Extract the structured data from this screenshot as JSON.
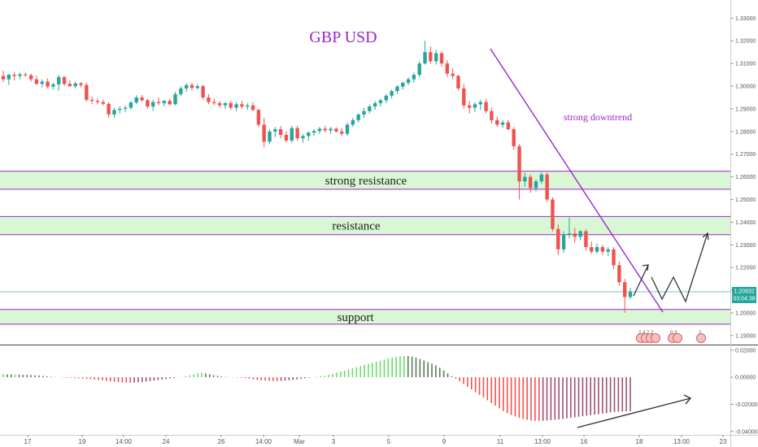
{
  "chart_data": {
    "type": "candlestick",
    "title": "GBP USD",
    "annotation": "strong downtrend",
    "price_axis": {
      "ticks": [
        "1.33000",
        "1.32000",
        "1.31000",
        "1.30000",
        "1.29000",
        "1.28000",
        "1.27000",
        "1.26000",
        "1.25000",
        "1.24000",
        "1.23000",
        "1.22000",
        "1.21000",
        "1.20000",
        "1.19000"
      ],
      "range": [
        1.186,
        1.338
      ]
    },
    "current_price": "1.20932",
    "countdown": "03:04:38",
    "zones": [
      {
        "label": "strong resistance",
        "from": 1.2545,
        "to": 1.2625
      },
      {
        "label": "resistance",
        "from": 1.2345,
        "to": 1.2425
      },
      {
        "label": "support",
        "from": 1.195,
        "to": 1.2015
      }
    ],
    "x_labels": [
      "17",
      "19",
      "14:00",
      "24",
      "26",
      "14:00",
      "Mar",
      "3",
      "5",
      "9",
      "11",
      "13:00",
      "16",
      "18",
      "13:00",
      "23"
    ],
    "candles": [
      {
        "o": 1.3045,
        "h": 1.3068,
        "l": 1.3018,
        "c": 1.303
      },
      {
        "o": 1.303,
        "h": 1.3055,
        "l": 1.3005,
        "c": 1.305
      },
      {
        "o": 1.305,
        "h": 1.3062,
        "l": 1.3025,
        "c": 1.3045
      },
      {
        "o": 1.3045,
        "h": 1.306,
        "l": 1.303,
        "c": 1.3052
      },
      {
        "o": 1.3052,
        "h": 1.306,
        "l": 1.304,
        "c": 1.3048
      },
      {
        "o": 1.3048,
        "h": 1.3055,
        "l": 1.302,
        "c": 1.303
      },
      {
        "o": 1.303,
        "h": 1.3045,
        "l": 1.3005,
        "c": 1.301
      },
      {
        "o": 1.301,
        "h": 1.303,
        "l": 1.2995,
        "c": 1.302
      },
      {
        "o": 1.302,
        "h": 1.3035,
        "l": 1.299,
        "c": 1.2998
      },
      {
        "o": 1.2998,
        "h": 1.3015,
        "l": 1.2985,
        "c": 1.3008
      },
      {
        "o": 1.3008,
        "h": 1.305,
        "l": 1.298,
        "c": 1.304
      },
      {
        "o": 1.304,
        "h": 1.3045,
        "l": 1.3,
        "c": 1.301
      },
      {
        "o": 1.301,
        "h": 1.3025,
        "l": 1.2995,
        "c": 1.3
      },
      {
        "o": 1.3,
        "h": 1.302,
        "l": 1.299,
        "c": 1.3012
      },
      {
        "o": 1.3012,
        "h": 1.3018,
        "l": 1.2995,
        "c": 1.3005
      },
      {
        "o": 1.3005,
        "h": 1.3015,
        "l": 1.293,
        "c": 1.294
      },
      {
        "o": 1.294,
        "h": 1.2955,
        "l": 1.292,
        "c": 1.2935
      },
      {
        "o": 1.2935,
        "h": 1.2945,
        "l": 1.292,
        "c": 1.293
      },
      {
        "o": 1.293,
        "h": 1.294,
        "l": 1.2915,
        "c": 1.2922
      },
      {
        "o": 1.2922,
        "h": 1.293,
        "l": 1.286,
        "c": 1.2875
      },
      {
        "o": 1.2875,
        "h": 1.2905,
        "l": 1.286,
        "c": 1.2895
      },
      {
        "o": 1.2895,
        "h": 1.291,
        "l": 1.288,
        "c": 1.29
      },
      {
        "o": 1.29,
        "h": 1.2915,
        "l": 1.2885,
        "c": 1.2905
      },
      {
        "o": 1.2905,
        "h": 1.2935,
        "l": 1.2895,
        "c": 1.2928
      },
      {
        "o": 1.2928,
        "h": 1.296,
        "l": 1.292,
        "c": 1.295
      },
      {
        "o": 1.295,
        "h": 1.2962,
        "l": 1.293,
        "c": 1.2938
      },
      {
        "o": 1.2938,
        "h": 1.2945,
        "l": 1.29,
        "c": 1.291
      },
      {
        "o": 1.291,
        "h": 1.294,
        "l": 1.289,
        "c": 1.293
      },
      {
        "o": 1.293,
        "h": 1.295,
        "l": 1.2915,
        "c": 1.2925
      },
      {
        "o": 1.2925,
        "h": 1.294,
        "l": 1.291,
        "c": 1.2935
      },
      {
        "o": 1.2935,
        "h": 1.2945,
        "l": 1.2915,
        "c": 1.292
      },
      {
        "o": 1.292,
        "h": 1.2975,
        "l": 1.2915,
        "c": 1.2965
      },
      {
        "o": 1.2965,
        "h": 1.3,
        "l": 1.2955,
        "c": 1.299
      },
      {
        "o": 1.299,
        "h": 1.3012,
        "l": 1.2975,
        "c": 1.3005
      },
      {
        "o": 1.3005,
        "h": 1.3015,
        "l": 1.298,
        "c": 1.2992
      },
      {
        "o": 1.2992,
        "h": 1.301,
        "l": 1.2985,
        "c": 1.3
      },
      {
        "o": 1.3,
        "h": 1.3008,
        "l": 1.294,
        "c": 1.295
      },
      {
        "o": 1.295,
        "h": 1.2965,
        "l": 1.292,
        "c": 1.293
      },
      {
        "o": 1.293,
        "h": 1.2945,
        "l": 1.2915,
        "c": 1.2925
      },
      {
        "o": 1.2925,
        "h": 1.2935,
        "l": 1.2905,
        "c": 1.2915
      },
      {
        "o": 1.2915,
        "h": 1.293,
        "l": 1.29,
        "c": 1.2925
      },
      {
        "o": 1.2925,
        "h": 1.2935,
        "l": 1.2895,
        "c": 1.2905
      },
      {
        "o": 1.2905,
        "h": 1.293,
        "l": 1.289,
        "c": 1.292
      },
      {
        "o": 1.292,
        "h": 1.2935,
        "l": 1.29,
        "c": 1.291
      },
      {
        "o": 1.291,
        "h": 1.2925,
        "l": 1.2895,
        "c": 1.2915
      },
      {
        "o": 1.2915,
        "h": 1.293,
        "l": 1.289,
        "c": 1.2895
      },
      {
        "o": 1.2895,
        "h": 1.29,
        "l": 1.282,
        "c": 1.283
      },
      {
        "o": 1.283,
        "h": 1.286,
        "l": 1.273,
        "c": 1.2755
      },
      {
        "o": 1.2755,
        "h": 1.281,
        "l": 1.2745,
        "c": 1.28
      },
      {
        "o": 1.28,
        "h": 1.282,
        "l": 1.2775,
        "c": 1.281
      },
      {
        "o": 1.281,
        "h": 1.2825,
        "l": 1.277,
        "c": 1.2785
      },
      {
        "o": 1.2785,
        "h": 1.28,
        "l": 1.275,
        "c": 1.276
      },
      {
        "o": 1.276,
        "h": 1.2825,
        "l": 1.275,
        "c": 1.2815
      },
      {
        "o": 1.2815,
        "h": 1.2825,
        "l": 1.276,
        "c": 1.277
      },
      {
        "o": 1.277,
        "h": 1.279,
        "l": 1.275,
        "c": 1.278
      },
      {
        "o": 1.278,
        "h": 1.28,
        "l": 1.276,
        "c": 1.2795
      },
      {
        "o": 1.2795,
        "h": 1.281,
        "l": 1.278,
        "c": 1.2802
      },
      {
        "o": 1.2802,
        "h": 1.282,
        "l": 1.279,
        "c": 1.2812
      },
      {
        "o": 1.2812,
        "h": 1.2825,
        "l": 1.2795,
        "c": 1.2805
      },
      {
        "o": 1.2805,
        "h": 1.282,
        "l": 1.279,
        "c": 1.2812
      },
      {
        "o": 1.2812,
        "h": 1.2818,
        "l": 1.2795,
        "c": 1.28
      },
      {
        "o": 1.28,
        "h": 1.2815,
        "l": 1.278,
        "c": 1.279
      },
      {
        "o": 1.279,
        "h": 1.284,
        "l": 1.278,
        "c": 1.283
      },
      {
        "o": 1.283,
        "h": 1.286,
        "l": 1.282,
        "c": 1.285
      },
      {
        "o": 1.285,
        "h": 1.288,
        "l": 1.284,
        "c": 1.2875
      },
      {
        "o": 1.2875,
        "h": 1.2905,
        "l": 1.286,
        "c": 1.289
      },
      {
        "o": 1.289,
        "h": 1.292,
        "l": 1.288,
        "c": 1.291
      },
      {
        "o": 1.291,
        "h": 1.2935,
        "l": 1.2895,
        "c": 1.2925
      },
      {
        "o": 1.2925,
        "h": 1.2945,
        "l": 1.291,
        "c": 1.2938
      },
      {
        "o": 1.2938,
        "h": 1.2965,
        "l": 1.2925,
        "c": 1.2958
      },
      {
        "o": 1.2958,
        "h": 1.2985,
        "l": 1.2945,
        "c": 1.2978
      },
      {
        "o": 1.2978,
        "h": 1.3005,
        "l": 1.2965,
        "c": 1.2998
      },
      {
        "o": 1.2998,
        "h": 1.302,
        "l": 1.2985,
        "c": 1.3015
      },
      {
        "o": 1.3015,
        "h": 1.304,
        "l": 1.3005,
        "c": 1.303
      },
      {
        "o": 1.303,
        "h": 1.306,
        "l": 1.3015,
        "c": 1.305
      },
      {
        "o": 1.305,
        "h": 1.311,
        "l": 1.304,
        "c": 1.31
      },
      {
        "o": 1.31,
        "h": 1.32,
        "l": 1.3095,
        "c": 1.315
      },
      {
        "o": 1.315,
        "h": 1.3175,
        "l": 1.31,
        "c": 1.311
      },
      {
        "o": 1.311,
        "h": 1.316,
        "l": 1.3095,
        "c": 1.3145
      },
      {
        "o": 1.3145,
        "h": 1.3155,
        "l": 1.3085,
        "c": 1.31
      },
      {
        "o": 1.31,
        "h": 1.3115,
        "l": 1.304,
        "c": 1.3055
      },
      {
        "o": 1.3055,
        "h": 1.308,
        "l": 1.303,
        "c": 1.3045
      },
      {
        "o": 1.3045,
        "h": 1.305,
        "l": 1.298,
        "c": 1.299
      },
      {
        "o": 1.299,
        "h": 1.301,
        "l": 1.29,
        "c": 1.2915
      },
      {
        "o": 1.2915,
        "h": 1.2935,
        "l": 1.288,
        "c": 1.2905
      },
      {
        "o": 1.2905,
        "h": 1.293,
        "l": 1.2885,
        "c": 1.292
      },
      {
        "o": 1.292,
        "h": 1.294,
        "l": 1.2895,
        "c": 1.293
      },
      {
        "o": 1.293,
        "h": 1.2945,
        "l": 1.288,
        "c": 1.289
      },
      {
        "o": 1.289,
        "h": 1.2905,
        "l": 1.2835,
        "c": 1.285
      },
      {
        "o": 1.285,
        "h": 1.2865,
        "l": 1.282,
        "c": 1.283
      },
      {
        "o": 1.283,
        "h": 1.285,
        "l": 1.2815,
        "c": 1.284
      },
      {
        "o": 1.284,
        "h": 1.285,
        "l": 1.2805,
        "c": 1.281
      },
      {
        "o": 1.281,
        "h": 1.282,
        "l": 1.272,
        "c": 1.2735
      },
      {
        "o": 1.2735,
        "h": 1.2745,
        "l": 1.25,
        "c": 1.258
      },
      {
        "o": 1.258,
        "h": 1.262,
        "l": 1.2555,
        "c": 1.26
      },
      {
        "o": 1.26,
        "h": 1.261,
        "l": 1.253,
        "c": 1.255
      },
      {
        "o": 1.255,
        "h": 1.259,
        "l": 1.2535,
        "c": 1.258
      },
      {
        "o": 1.258,
        "h": 1.262,
        "l": 1.257,
        "c": 1.261
      },
      {
        "o": 1.261,
        "h": 1.262,
        "l": 1.249,
        "c": 1.25
      },
      {
        "o": 1.25,
        "h": 1.251,
        "l": 1.236,
        "c": 1.237
      },
      {
        "o": 1.237,
        "h": 1.239,
        "l": 1.2255,
        "c": 1.228
      },
      {
        "o": 1.228,
        "h": 1.236,
        "l": 1.2265,
        "c": 1.2345
      },
      {
        "o": 1.2345,
        "h": 1.242,
        "l": 1.233,
        "c": 1.235
      },
      {
        "o": 1.235,
        "h": 1.2375,
        "l": 1.231,
        "c": 1.2335
      },
      {
        "o": 1.2335,
        "h": 1.2365,
        "l": 1.232,
        "c": 1.236
      },
      {
        "o": 1.236,
        "h": 1.237,
        "l": 1.2275,
        "c": 1.229
      },
      {
        "o": 1.229,
        "h": 1.2315,
        "l": 1.226,
        "c": 1.227
      },
      {
        "o": 1.227,
        "h": 1.2305,
        "l": 1.226,
        "c": 1.229
      },
      {
        "o": 1.229,
        "h": 1.23,
        "l": 1.2255,
        "c": 1.227
      },
      {
        "o": 1.227,
        "h": 1.229,
        "l": 1.225,
        "c": 1.228
      },
      {
        "o": 1.228,
        "h": 1.229,
        "l": 1.2195,
        "c": 1.221
      },
      {
        "o": 1.221,
        "h": 1.2225,
        "l": 1.212,
        "c": 1.2135
      },
      {
        "o": 1.2135,
        "h": 1.215,
        "l": 1.2,
        "c": 1.207
      },
      {
        "o": 1.207,
        "h": 1.211,
        "l": 1.206,
        "c": 1.2093
      }
    ],
    "oscillator": {
      "ticks": [
        "0.02000",
        "0.00000",
        "-0.02000",
        "-0.04000"
      ],
      "range": [
        -0.0425,
        0.0235
      ],
      "values": [
        0.0022,
        0.0021,
        0.002,
        0.002,
        0.0019,
        0.0018,
        0.0017,
        0.0016,
        0.0015,
        0.0013,
        0.001,
        0.0007,
        0.0004,
        0.0002,
        0.0,
        -0.0002,
        -0.0004,
        -0.0005,
        -0.0007,
        -0.0008,
        -0.001,
        -0.0012,
        -0.0014,
        -0.0017,
        -0.002,
        -0.0023,
        -0.0027,
        -0.003,
        -0.0033,
        -0.0036,
        -0.0038,
        -0.0039,
        -0.004,
        -0.0039,
        -0.0037,
        -0.0035,
        -0.0032,
        -0.0029,
        -0.0025,
        -0.0021,
        -0.0017,
        -0.0013,
        -0.0009,
        -0.0005,
        -0.0002,
        0.0002,
        0.0008,
        0.0015,
        0.0022,
        0.003,
        0.0033,
        0.0028,
        0.0022,
        0.0016,
        0.001,
        0.0006,
        0.0003,
        0.0001,
        -0.0001,
        -0.0003,
        -0.0005,
        -0.0008,
        -0.0011,
        -0.0015,
        -0.0019,
        -0.0022,
        -0.0025,
        -0.0027,
        -0.0028,
        -0.0028,
        -0.0027,
        -0.0025,
        -0.0022,
        -0.0019,
        -0.0016,
        -0.0012,
        -0.0008,
        -0.0004,
        0.0,
        0.0004,
        0.0008,
        0.0013,
        0.0019,
        0.0026,
        0.0033,
        0.0041,
        0.005,
        0.0058,
        0.0066,
        0.0074,
        0.0082,
        0.009,
        0.0098,
        0.0106,
        0.0114,
        0.0122,
        0.013,
        0.0138,
        0.0146,
        0.0152,
        0.0156,
        0.0158,
        0.0157,
        0.0152,
        0.0145,
        0.0135,
        0.0124,
        0.0112,
        0.01,
        0.0087,
        0.007,
        0.005,
        0.0028,
        0.0008,
        -0.001,
        -0.003,
        -0.005,
        -0.007,
        -0.009,
        -0.011,
        -0.013,
        -0.015,
        -0.017,
        -0.019,
        -0.021,
        -0.023,
        -0.025,
        -0.0265,
        -0.0278,
        -0.029,
        -0.03,
        -0.0308,
        -0.0315,
        -0.032,
        -0.0322,
        -0.0323,
        -0.0322,
        -0.032,
        -0.0317,
        -0.0314,
        -0.0311,
        -0.0308,
        -0.0304,
        -0.03,
        -0.0296,
        -0.0292,
        -0.0288,
        -0.0284,
        -0.028,
        -0.0276,
        -0.0272,
        -0.0268,
        -0.0264,
        -0.026,
        -0.0257,
        -0.0255,
        -0.0253,
        -0.0252,
        -0.0251
      ]
    },
    "event_badges": [
      "2 4 2 2",
      "0 3",
      "2"
    ],
    "colors": {
      "up": "#26a69a",
      "down": "#ef5350",
      "zone_fill": "#d9f7d5",
      "zone_line": "#9b27c9",
      "trendline": "#9b27c9",
      "price_label_bg": "#26a69a",
      "hist_up_strong": "#66e066",
      "hist_up_weak": "#5d7a5d",
      "hist_down_strong": "#ef5350",
      "hist_down_weak": "#a05070"
    }
  }
}
